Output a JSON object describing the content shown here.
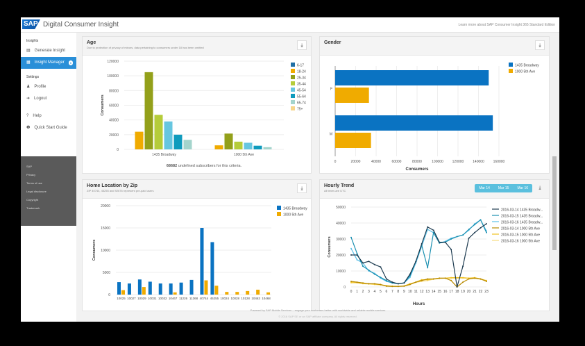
{
  "header": {
    "logo": "SAP",
    "title": "Digital Consumer Insight",
    "learn_more": "Learn more about SAP Consumer Insight 365 Standard Edition"
  },
  "sidebar": {
    "sections": [
      {
        "title": "Insights",
        "items": [
          {
            "label": "Generate Insight",
            "icon": "▤"
          },
          {
            "label": "Insight Manager",
            "icon": "▦",
            "badge": "6",
            "active": true
          }
        ]
      },
      {
        "title": "Settings",
        "items": [
          {
            "label": "Profile",
            "icon": "♟"
          },
          {
            "label": "Logout",
            "icon": "➜"
          },
          {
            "label": "Help",
            "icon": "?"
          },
          {
            "label": "Quick Start Guide",
            "icon": "❶"
          }
        ]
      }
    ],
    "footer_links": [
      "SAP",
      "Privacy",
      "Terms of use",
      "Legal disclosure",
      "Copyright",
      "Trademark"
    ]
  },
  "age": {
    "title": "Age",
    "subtitle": "Due to protection of privacy of minors, data pertaining to consumers under 18 has been omitted",
    "note_count": "68682",
    "note_text": " undefined subscribers for this criteria."
  },
  "gender": {
    "title": "Gender"
  },
  "zip": {
    "title": "Home Location by Zip",
    "subtitle": "ZIP 40744, 45255 and 92676 represent pre-paid users"
  },
  "hourly": {
    "title": "Hourly Trend",
    "subtitle": "All times are UTC",
    "days": [
      "Mar 14",
      "Mar 15",
      "Mar 16"
    ]
  },
  "footer": {
    "line1": "Powered by SAP Mobile Services – engage your customers better with worldwide and reliable mobile services",
    "line2": "© 2016 SAP SE or an SAP affiliate company. All rights reserved."
  },
  "chart_data": [
    {
      "type": "bar",
      "title": "Age",
      "ylabel": "Consumers",
      "ylim": [
        0,
        120000
      ],
      "yticks": [
        0,
        20000,
        40000,
        60000,
        80000,
        100000,
        120000
      ],
      "categories": [
        "1435 Broadway",
        "1000 5th Ave"
      ],
      "series": [
        {
          "name": "6-17",
          "color": "#1f6fa5",
          "values": [
            0,
            0
          ]
        },
        {
          "name": "18-24",
          "color": "#f0ab00",
          "values": [
            24000,
            5500
          ]
        },
        {
          "name": "25-34",
          "color": "#93a01a",
          "values": [
            105000,
            21500
          ]
        },
        {
          "name": "35-44",
          "color": "#b5cc3a",
          "values": [
            47000,
            10500
          ]
        },
        {
          "name": "45-54",
          "color": "#66c6e0",
          "values": [
            38000,
            9000
          ]
        },
        {
          "name": "55-64",
          "color": "#0f9bbd",
          "values": [
            20000,
            5000
          ]
        },
        {
          "name": "65-74",
          "color": "#a4d4cc",
          "values": [
            13000,
            3000
          ]
        },
        {
          "name": "75+",
          "color": "#f7d58a",
          "values": [
            0,
            0
          ]
        }
      ]
    },
    {
      "type": "bar",
      "orientation": "horizontal",
      "title": "Gender",
      "xlabel": "Consumers",
      "xlim": [
        0,
        160000
      ],
      "xticks": [
        0,
        20000,
        40000,
        60000,
        80000,
        100000,
        120000,
        140000,
        160000
      ],
      "categories": [
        "F",
        "M"
      ],
      "series": [
        {
          "name": "1435 Broadway",
          "color": "#0a73c2",
          "values": [
            150000,
            154000
          ]
        },
        {
          "name": "1000 5th Ave",
          "color": "#f0ab00",
          "values": [
            33000,
            35000
          ]
        }
      ]
    },
    {
      "type": "bar",
      "title": "Home Location by Zip",
      "ylabel": "Consumers",
      "ylim": [
        0,
        20000
      ],
      "yticks": [
        0,
        5000,
        10000,
        15000,
        20000
      ],
      "categories": [
        "10025",
        "10027",
        "10029",
        "10031",
        "10032",
        "10467",
        "11226",
        "11368",
        "40744",
        "45255",
        "10024",
        "10028",
        "10128",
        "10463",
        "10468"
      ],
      "series": [
        {
          "name": "1435 Broadway",
          "color": "#0a73c2",
          "values": [
            2800,
            2500,
            3400,
            2900,
            2500,
            2500,
            2700,
            3300,
            15000,
            11800,
            0,
            0,
            0,
            0,
            0
          ]
        },
        {
          "name": "1000 5th Ave",
          "color": "#f0ab00",
          "values": [
            1000,
            0,
            1700,
            0,
            0,
            500,
            0,
            0,
            3200,
            2000,
            600,
            600,
            800,
            1100,
            500
          ]
        }
      ]
    },
    {
      "type": "line",
      "title": "Hourly Trend",
      "xlabel": "Hours",
      "ylabel": "Consumers",
      "ylim": [
        0,
        50000
      ],
      "yticks": [
        0,
        10000,
        20000,
        30000,
        40000,
        50000
      ],
      "x": [
        0,
        1,
        2,
        3,
        4,
        5,
        6,
        7,
        8,
        9,
        10,
        11,
        12,
        13,
        14,
        15,
        16,
        17,
        18,
        19,
        20,
        21,
        22,
        23
      ],
      "series": [
        {
          "name": "2016-03-14 1435 Broadw...",
          "color": "#1d3b50",
          "values": [
            20000,
            20000,
            15000,
            16000,
            14000,
            12500,
            5000,
            3000,
            2000,
            2500,
            8000,
            16000,
            27000,
            37500,
            35500,
            28000,
            28000,
            23500,
            0,
            13000,
            30500,
            34000,
            37000,
            39500
          ]
        },
        {
          "name": "2016-03-15 1435 Broadw...",
          "color": "#1a8fb0",
          "values": [
            31000,
            21000,
            13000,
            10500,
            8000,
            6000,
            4000,
            2500,
            2000,
            2500,
            7000,
            16000,
            26000,
            12000,
            34000,
            27500,
            28000,
            30000,
            31500,
            32500,
            36000,
            39000,
            42000,
            34000
          ]
        },
        {
          "name": "2016-03-16 1435 Broadw...",
          "color": "#5bc0e8",
          "values": [
            24000,
            17000,
            15000,
            10000,
            8500,
            5500,
            3500,
            2500,
            2000,
            2500,
            6000,
            15000,
            25500,
            36000,
            34000,
            27500,
            28500,
            30500,
            31500,
            32500,
            35500,
            39500,
            42000,
            35000
          ]
        },
        {
          "name": "2016-03-14 1000 5th Ave",
          "color": "#b88a00",
          "values": [
            3500,
            3000,
            2500,
            2000,
            2000,
            1500,
            500,
            300,
            300,
            500,
            1500,
            3000,
            4000,
            5000,
            5000,
            5500,
            5500,
            4000,
            0,
            3000,
            5000,
            5500,
            5000,
            3500
          ]
        },
        {
          "name": "2016-03-15 1000 5th Ave",
          "color": "#f0c020",
          "values": [
            3000,
            2800,
            2200,
            2000,
            1800,
            1500,
            800,
            500,
            400,
            600,
            2000,
            3000,
            4500,
            4500,
            5000,
            5500,
            5500,
            5800,
            5800,
            5800,
            5500,
            5800,
            5000,
            4000
          ]
        },
        {
          "name": "2016-03-16 1000 5th Ave",
          "color": "#f7dc80",
          "values": [
            2500,
            2500,
            2000,
            1800,
            1500,
            1200,
            700,
            500,
            400,
            600,
            1800,
            2800,
            3500,
            4000,
            4800,
            5200,
            5500,
            5500,
            5500,
            5500,
            5500,
            5500,
            4800,
            3800
          ]
        }
      ]
    }
  ]
}
